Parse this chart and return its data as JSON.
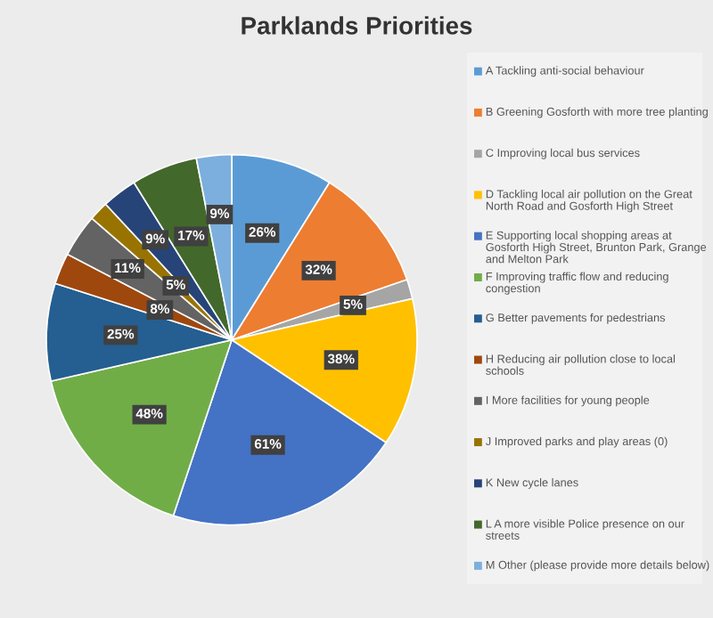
{
  "chart_data": {
    "type": "pie",
    "title": "Parklands Priorities",
    "categories": [
      "A Tackling anti-social behaviour",
      "B Greening Gosforth with more tree planting",
      "C Improving local bus services",
      "D Tackling local air pollution on the Great North Road and Gosforth High Street",
      "E Supporting local shopping areas at Gosforth High Street, Brunton Park, Grange and Melton Park",
      "F Improving traffic flow and reducing congestion",
      "G Better pavements for pedestrians",
      "H Reducing air pollution close to local schools",
      "I More facilities for young people",
      "J Improved parks and play areas (0)",
      "K New cycle lanes",
      "L A more visible Police presence on our streets",
      "M Other (please provide more details below)"
    ],
    "values": [
      26,
      32,
      5,
      38,
      61,
      48,
      25,
      8,
      11,
      5,
      9,
      17,
      9
    ],
    "value_labels": [
      "26%",
      "32%",
      "5%",
      "38%",
      "61%",
      "48%",
      "25%",
      "8%",
      "11%",
      "5%",
      "9%",
      "17%",
      "9%"
    ],
    "colors": [
      "#5b9bd5",
      "#ed7d31",
      "#a5a5a5",
      "#ffc000",
      "#4472c4",
      "#70ad47",
      "#255e91",
      "#9e480e",
      "#636363",
      "#997300",
      "#264478",
      "#43682b",
      "#7cafdd"
    ],
    "legend": "right"
  }
}
